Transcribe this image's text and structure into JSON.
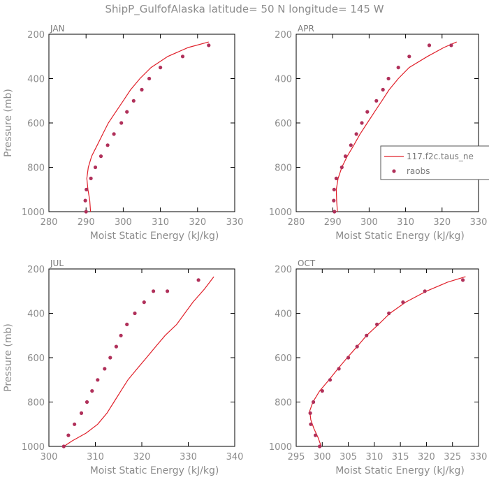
{
  "figure_title": "ShipP_GulfofAlaska   latitude= 50 N longitude= 145 W",
  "colors": {
    "model": "#e0202a",
    "raobs": "#b0305a",
    "axis": "#000000",
    "text": "#8c8c8c"
  },
  "legend": {
    "model_label": "117.f2c.taus_ne",
    "obs_label": "raobs"
  },
  "chart_data": [
    {
      "type": "line",
      "panel_label": "JAN",
      "xlabel": "Moist Static Energy (kJ/kg)",
      "ylabel": "Pressure (mb)",
      "xlim": [
        280,
        330
      ],
      "ylim": [
        200,
        1000
      ],
      "y_inverted": true,
      "xticks": [
        280,
        290,
        300,
        310,
        320,
        330
      ],
      "yticks": [
        200,
        400,
        600,
        800,
        1000
      ],
      "series": [
        {
          "name": "117.f2c.taus_ne",
          "kind": "line",
          "x": [
            291.2,
            291.0,
            290.5,
            290.2,
            290.6,
            291.5,
            293.0,
            294.5,
            296.0,
            298.0,
            300.0,
            302.0,
            304.5,
            307.5,
            312.0,
            317.5,
            323.0
          ],
          "y": [
            1000,
            950,
            900,
            850,
            800,
            750,
            700,
            650,
            600,
            550,
            500,
            450,
            400,
            350,
            300,
            260,
            235
          ]
        },
        {
          "name": "raobs",
          "kind": "scatter",
          "x": [
            290.0,
            289.8,
            290.1,
            291.3,
            292.5,
            294.0,
            295.8,
            297.5,
            299.5,
            301.0,
            302.8,
            305.0,
            307.0,
            310.0,
            316.0,
            323.0
          ],
          "y": [
            1000,
            950,
            900,
            850,
            800,
            750,
            700,
            650,
            600,
            550,
            500,
            450,
            400,
            350,
            300,
            250
          ]
        }
      ]
    },
    {
      "type": "line",
      "panel_label": "APR",
      "xlabel": "Moist Static Energy (kJ/kg)",
      "ylabel": "",
      "xlim": [
        280,
        330
      ],
      "ylim": [
        200,
        1000
      ],
      "y_inverted": true,
      "xticks": [
        280,
        290,
        300,
        310,
        320,
        330
      ],
      "yticks": [
        200,
        400,
        600,
        800,
        1000
      ],
      "series": [
        {
          "name": "117.f2c.taus_ne",
          "kind": "line",
          "x": [
            291.3,
            291.1,
            291.0,
            291.5,
            292.5,
            294.0,
            295.8,
            297.5,
            299.5,
            301.5,
            303.5,
            305.5,
            308.0,
            311.0,
            316.0,
            320.5,
            324.0
          ],
          "y": [
            1000,
            950,
            900,
            850,
            800,
            750,
            700,
            650,
            600,
            550,
            500,
            450,
            400,
            350,
            300,
            260,
            235
          ]
        },
        {
          "name": "raobs",
          "kind": "scatter",
          "x": [
            290.5,
            290.3,
            290.4,
            291.0,
            292.5,
            293.5,
            295.0,
            296.5,
            298.0,
            299.5,
            302.0,
            303.8,
            305.3,
            308.0,
            311.0,
            316.5,
            322.5
          ],
          "y": [
            1000,
            950,
            900,
            850,
            800,
            750,
            700,
            650,
            600,
            550,
            500,
            450,
            400,
            350,
            300,
            250,
            250
          ]
        }
      ]
    },
    {
      "type": "line",
      "panel_label": "JUL",
      "xlabel": "Moist Static Energy (kJ/kg)",
      "ylabel": "Pressure (mb)",
      "xlim": [
        300,
        340
      ],
      "ylim": [
        200,
        1000
      ],
      "y_inverted": true,
      "xticks": [
        300,
        310,
        320,
        330,
        340
      ],
      "yticks": [
        200,
        400,
        600,
        800,
        1000
      ],
      "series": [
        {
          "name": "117.f2c.taus_ne",
          "kind": "line",
          "x": [
            302.5,
            305.0,
            308.0,
            310.5,
            312.5,
            314.0,
            315.5,
            317.0,
            319.0,
            321.0,
            323.0,
            325.0,
            327.5,
            331.0,
            333.5,
            335.5
          ],
          "y": [
            1010,
            975,
            940,
            900,
            850,
            800,
            750,
            700,
            650,
            600,
            550,
            500,
            450,
            350,
            290,
            235
          ]
        },
        {
          "name": "raobs",
          "kind": "scatter",
          "x": [
            303.2,
            304.2,
            305.5,
            307.0,
            308.2,
            309.3,
            310.5,
            312.0,
            313.2,
            314.5,
            315.5,
            316.8,
            318.5,
            320.5,
            322.5,
            325.5,
            332.2
          ],
          "y": [
            1000,
            950,
            900,
            850,
            800,
            750,
            700,
            650,
            600,
            550,
            500,
            450,
            400,
            350,
            300,
            300,
            250
          ]
        }
      ]
    },
    {
      "type": "line",
      "panel_label": "OCT",
      "xlabel": "Moist Static Energy (kJ/kg)",
      "ylabel": "",
      "xlim": [
        295,
        330
      ],
      "ylim": [
        200,
        1000
      ],
      "y_inverted": true,
      "xticks": [
        295,
        300,
        305,
        310,
        315,
        320,
        325,
        330
      ],
      "yticks": [
        200,
        400,
        600,
        800,
        1000
      ],
      "series": [
        {
          "name": "117.f2c.taus_ne",
          "kind": "line",
          "x": [
            299.8,
            299.2,
            298.4,
            297.8,
            297.6,
            298.2,
            299.5,
            301.3,
            303.0,
            304.8,
            306.7,
            308.5,
            310.8,
            313.0,
            316.0,
            320.0,
            324.0,
            327.5
          ],
          "y": [
            1000,
            960,
            920,
            880,
            840,
            800,
            750,
            700,
            650,
            600,
            550,
            500,
            450,
            400,
            350,
            300,
            260,
            235
          ]
        },
        {
          "name": "raobs",
          "kind": "scatter",
          "x": [
            299.5,
            298.7,
            297.8,
            297.7,
            298.3,
            300.0,
            301.5,
            303.2,
            305.0,
            306.7,
            308.5,
            310.5,
            312.8,
            315.5,
            319.7,
            327.0
          ],
          "y": [
            1000,
            950,
            900,
            850,
            800,
            750,
            700,
            650,
            600,
            550,
            500,
            450,
            400,
            350,
            300,
            250
          ]
        }
      ]
    }
  ]
}
